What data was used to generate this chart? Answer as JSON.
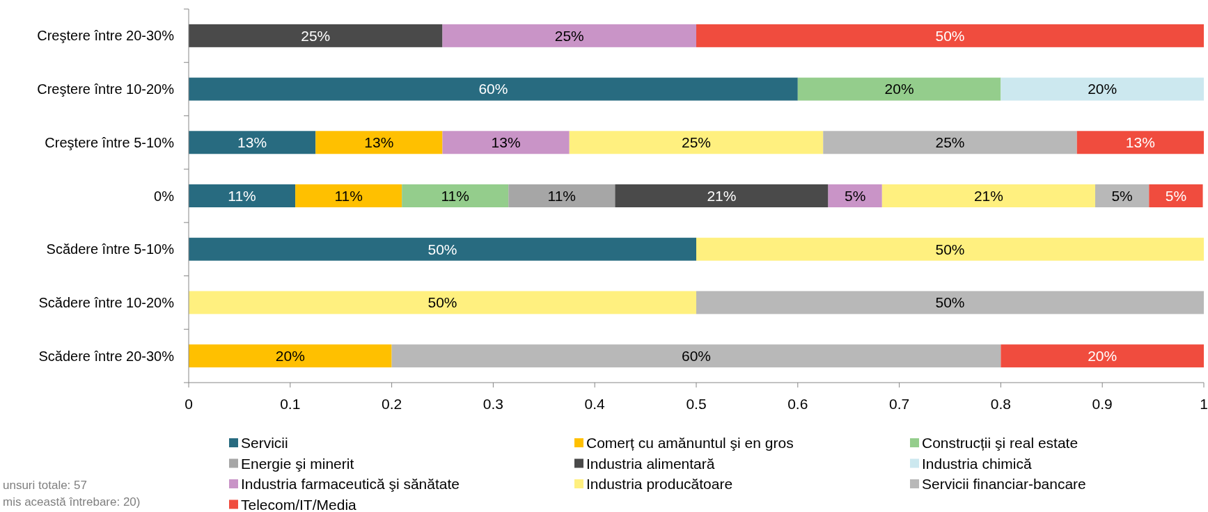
{
  "chart_data": {
    "type": "bar",
    "orientation": "horizontal",
    "stacked": true,
    "categories": [
      "Creştere între 20-30%",
      "Creştere între 10-20%",
      "Creştere între 5-10%",
      "0%",
      "Scădere între 5-10%",
      "Scădere între 10-20%",
      "Scădere între 20-30%"
    ],
    "series": [
      {
        "name": "Servicii",
        "color": "#286b80",
        "values": [
          null,
          0.6,
          0.125,
          0.105,
          0.5,
          null,
          null
        ],
        "value_labels": [
          null,
          "60%",
          "13%",
          "11%",
          "50%",
          null,
          null
        ]
      },
      {
        "name": "Comerț cu amănuntul şi en gros",
        "color": "#ffc000",
        "values": [
          null,
          null,
          0.125,
          0.105,
          null,
          null,
          0.2
        ],
        "value_labels": [
          null,
          null,
          "13%",
          "11%",
          null,
          null,
          "20%"
        ]
      },
      {
        "name": "Construcții şi real estate",
        "color": "#94cd8c",
        "values": [
          null,
          0.2,
          null,
          0.105,
          null,
          null,
          null
        ],
        "value_labels": [
          null,
          "20%",
          null,
          "11%",
          null,
          null,
          null
        ]
      },
      {
        "name": "Energie şi minerit",
        "color": "#a6a6a6",
        "values": [
          null,
          null,
          null,
          0.105,
          null,
          null,
          null
        ],
        "value_labels": [
          null,
          null,
          null,
          "11%",
          null,
          null,
          null
        ]
      },
      {
        "name": "Industria alimentară",
        "color": "#4a4a4a",
        "values": [
          0.25,
          null,
          null,
          0.21,
          null,
          null,
          null
        ],
        "value_labels": [
          "25%",
          null,
          null,
          "21%",
          null,
          null,
          null
        ]
      },
      {
        "name": "Industria chimică",
        "color": "#cce8ef",
        "values": [
          null,
          0.2,
          null,
          null,
          null,
          null,
          null
        ],
        "value_labels": [
          null,
          "20%",
          null,
          null,
          null,
          null,
          null
        ]
      },
      {
        "name": "Industria farmaceutică şi sănătate",
        "color": "#c994c7",
        "values": [
          0.25,
          null,
          0.125,
          0.053,
          null,
          null,
          null
        ],
        "value_labels": [
          "25%",
          null,
          "13%",
          "5%",
          null,
          null,
          null
        ]
      },
      {
        "name": "Industria producătoare",
        "color": "#fff07f",
        "values": [
          null,
          null,
          0.25,
          0.21,
          0.5,
          0.5,
          null
        ],
        "value_labels": [
          null,
          null,
          "25%",
          "21%",
          "50%",
          "50%",
          null
        ]
      },
      {
        "name": "Servicii financiar-bancare",
        "color": "#b8b8b8",
        "values": [
          null,
          null,
          0.25,
          0.053,
          null,
          0.5,
          0.6
        ],
        "value_labels": [
          null,
          null,
          "25%",
          "5%",
          null,
          "50%",
          "60%"
        ]
      },
      {
        "name": "Telecom/IT/Media",
        "color": "#f04c3e",
        "values": [
          0.5,
          null,
          0.125,
          0.053,
          null,
          null,
          0.2
        ],
        "value_labels": [
          "50%",
          null,
          "13%",
          "5%",
          null,
          null,
          "20%"
        ]
      }
    ],
    "xlim": [
      0,
      1
    ],
    "xticks": [
      0,
      0.1,
      0.2,
      0.3,
      0.4,
      0.5,
      0.6,
      0.7,
      0.8,
      0.9,
      1
    ],
    "grid": false,
    "legend": "bottom",
    "annotations": [
      "unsuri totale: 57",
      "mis această întrebare: 20)"
    ]
  }
}
